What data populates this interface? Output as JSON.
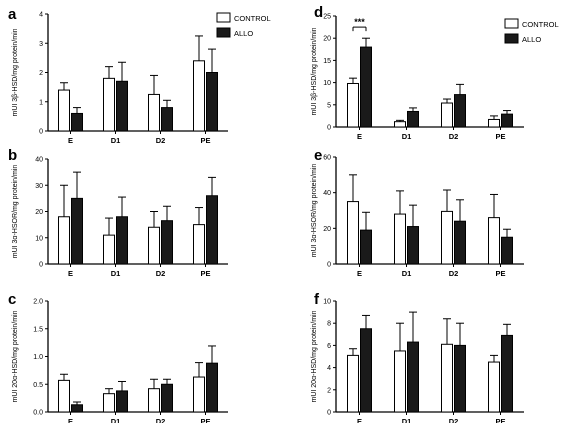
{
  "legend": {
    "control_label": "CONTROL",
    "allo_label": "ALLO"
  },
  "colors": {
    "control": "#ffffff",
    "allo": "#1a1a1a",
    "axis": "#000000"
  },
  "chart_data": [
    {
      "letter": "a",
      "type": "bar",
      "categories": [
        "E",
        "D1",
        "D2",
        "PE"
      ],
      "ylabel": "mUI 3β-HSD/mg protein/min",
      "ylim": [
        0,
        4
      ],
      "yticks": [
        "0",
        "1",
        "2",
        "3",
        "4"
      ],
      "series": [
        {
          "name": "CONTROL",
          "values": [
            1.4,
            1.8,
            1.25,
            2.4
          ],
          "errors": [
            0.25,
            0.4,
            0.65,
            0.85
          ]
        },
        {
          "name": "ALLO",
          "values": [
            0.6,
            1.7,
            0.8,
            2.0
          ],
          "errors": [
            0.2,
            0.65,
            0.25,
            0.8
          ]
        }
      ]
    },
    {
      "letter": "b",
      "type": "bar",
      "categories": [
        "E",
        "D1",
        "D2",
        "PE"
      ],
      "ylabel": "mUI 3α-HSOR/mg protein/min",
      "ylim": [
        0,
        40
      ],
      "yticks": [
        "0",
        "10",
        "20",
        "30",
        "40"
      ],
      "series": [
        {
          "name": "CONTROL",
          "values": [
            18,
            11,
            14,
            15
          ],
          "errors": [
            12,
            6.5,
            6,
            6.5
          ]
        },
        {
          "name": "ALLO",
          "values": [
            25,
            18,
            16.5,
            26
          ],
          "errors": [
            10,
            7.5,
            5.5,
            7
          ]
        }
      ]
    },
    {
      "letter": "c",
      "type": "bar",
      "categories": [
        "E",
        "D1",
        "D2",
        "PE"
      ],
      "ylabel": "mUI 20α-HSD/mg protein/min",
      "ylim": [
        0,
        2
      ],
      "yticks": [
        "0.0",
        "0.5",
        "1.0",
        "1.5",
        "2.0"
      ],
      "series": [
        {
          "name": "CONTROL",
          "values": [
            0.57,
            0.33,
            0.42,
            0.63
          ],
          "errors": [
            0.11,
            0.09,
            0.17,
            0.26
          ]
        },
        {
          "name": "ALLO",
          "values": [
            0.13,
            0.38,
            0.5,
            0.88
          ],
          "errors": [
            0.05,
            0.17,
            0.09,
            0.31
          ]
        }
      ]
    },
    {
      "letter": "d",
      "type": "bar",
      "categories": [
        "E",
        "D1",
        "D2",
        "PE"
      ],
      "ylabel": "mUI 3β-HSD/mg protein/min",
      "ylim": [
        0,
        25
      ],
      "yticks": [
        "0",
        "5",
        "10",
        "15",
        "20",
        "25"
      ],
      "annotation": "***",
      "series": [
        {
          "name": "CONTROL",
          "values": [
            9.8,
            1.2,
            5.4,
            1.7
          ],
          "errors": [
            1.2,
            0.3,
            0.9,
            0.8
          ]
        },
        {
          "name": "ALLO",
          "values": [
            18,
            3.5,
            7.3,
            2.9
          ],
          "errors": [
            2.0,
            0.8,
            2.3,
            0.8
          ]
        }
      ]
    },
    {
      "letter": "e",
      "type": "bar",
      "categories": [
        "E",
        "D1",
        "D2",
        "PE"
      ],
      "ylabel": "mUI 3α-HSOR/mg protein/min",
      "ylim": [
        0,
        60
      ],
      "yticks": [
        "0",
        "20",
        "40",
        "60"
      ],
      "series": [
        {
          "name": "CONTROL",
          "values": [
            35,
            28,
            29.5,
            26
          ],
          "errors": [
            15,
            13,
            12,
            13
          ]
        },
        {
          "name": "ALLO",
          "values": [
            19,
            21,
            24,
            15
          ],
          "errors": [
            10,
            12,
            12,
            4.5
          ]
        }
      ]
    },
    {
      "letter": "f",
      "type": "bar",
      "categories": [
        "E",
        "D1",
        "D2",
        "PE"
      ],
      "ylabel": "mUI 20α-HSD/mg protein/min",
      "ylim": [
        0,
        10
      ],
      "yticks": [
        "0",
        "2",
        "4",
        "6",
        "8",
        "10"
      ],
      "series": [
        {
          "name": "CONTROL",
          "values": [
            5.1,
            5.5,
            6.1,
            4.5
          ],
          "errors": [
            0.6,
            2.5,
            2.3,
            0.6
          ]
        },
        {
          "name": "ALLO",
          "values": [
            7.5,
            6.3,
            6.0,
            6.9
          ],
          "errors": [
            1.2,
            2.7,
            2.0,
            1.0
          ]
        }
      ]
    }
  ]
}
